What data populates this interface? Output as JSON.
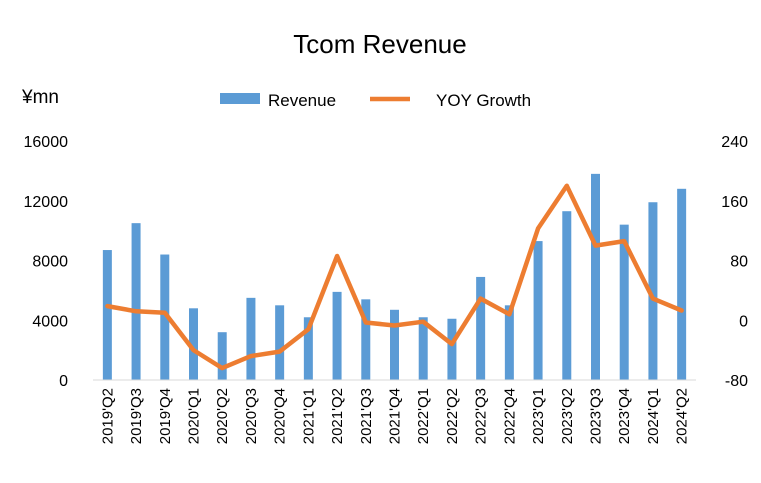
{
  "chart_data": {
    "type": "bar+line",
    "title": "Tcom Revenue",
    "ylabel": "¥mn",
    "categories": [
      "2019'Q2",
      "2019'Q3",
      "2019'Q4",
      "2020'Q1",
      "2020'Q2",
      "2020'Q3",
      "2020'Q4",
      "2021'Q1",
      "2021'Q2",
      "2021'Q3",
      "2021'Q4",
      "2022'Q1",
      "2022'Q2",
      "2022'Q3",
      "2022'Q4",
      "2023'Q1",
      "2023'Q2",
      "2023'Q3",
      "2023'Q4",
      "2024'Q1",
      "2024'Q2"
    ],
    "series": [
      {
        "name": "Revenue",
        "type": "bar",
        "axis": "left",
        "color": "#5B9BD5",
        "values": [
          8700,
          10500,
          8400,
          4800,
          3200,
          5500,
          5000,
          4200,
          5900,
          5400,
          4700,
          4200,
          4100,
          6900,
          5000,
          9300,
          11300,
          13800,
          10400,
          11900,
          12800
        ]
      },
      {
        "name": "YOY Growth",
        "type": "line",
        "axis": "right",
        "color": "#ED7D31",
        "values": [
          19,
          12,
          10,
          -40,
          -64,
          -48,
          -42,
          -12,
          86,
          -3,
          -7,
          -2,
          -32,
          29,
          8,
          123,
          180,
          100,
          106,
          29,
          13
        ]
      }
    ],
    "y_left": {
      "ylim": [
        0,
        16000
      ],
      "ticks": [
        "0",
        "4000",
        "8000",
        "12000",
        "16000"
      ]
    },
    "y_right": {
      "ylim": [
        -80,
        240
      ],
      "ticks": [
        "-80",
        "0",
        "80",
        "160",
        "240"
      ]
    },
    "grid": false,
    "legend_position": "top"
  }
}
